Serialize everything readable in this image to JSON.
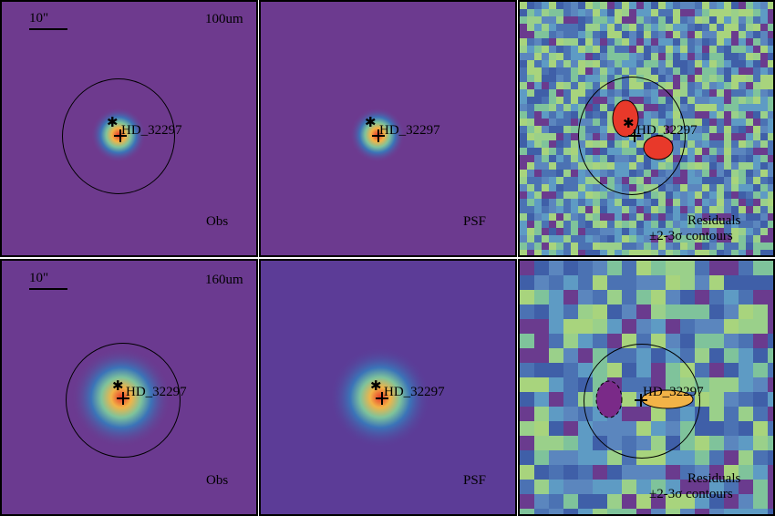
{
  "panels": {
    "p100_obs": {
      "target": "HD_32297",
      "band": "100um",
      "kind": "Obs",
      "scale": "10\""
    },
    "p100_psf": {
      "target": "HD_32297",
      "kind": "PSF"
    },
    "p100_res": {
      "target": "HD_32297",
      "kind": "Residuals",
      "contours": "±2-3σ contours"
    },
    "p160_obs": {
      "target": "HD_32297",
      "band": "160um",
      "kind": "Obs",
      "scale": "10\""
    },
    "p160_psf": {
      "target": "HD_32297",
      "kind": "PSF"
    },
    "p160_res": {
      "target": "HD_32297",
      "kind": "Residuals",
      "contours": "±2-3σ contours"
    }
  },
  "colors": {
    "background": "#6a3b8e",
    "core": "#e8392a",
    "ring": "#f2b347"
  }
}
